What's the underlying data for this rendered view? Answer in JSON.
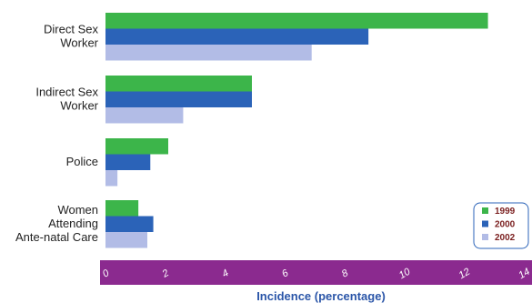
{
  "chart_data": {
    "type": "bar",
    "orientation": "horizontal",
    "categories": [
      [
        "Direct Sex",
        "Worker"
      ],
      [
        "Indirect Sex",
        "Worker"
      ],
      [
        "Police"
      ],
      [
        "Women",
        "Attending",
        "Ante-natal Care"
      ]
    ],
    "series": [
      {
        "name": "1999",
        "color": "#3cb54a",
        "values": [
          12.8,
          4.9,
          2.1,
          1.1
        ]
      },
      {
        "name": "2000",
        "color": "#2b63b8",
        "values": [
          8.8,
          4.9,
          1.5,
          1.6
        ]
      },
      {
        "name": "2002",
        "color": "#b2bce6",
        "values": [
          6.9,
          2.6,
          0.4,
          1.4
        ]
      }
    ],
    "xlabel": "Incidence (percentage)",
    "xlim": [
      0,
      14
    ],
    "xticks": [
      "0",
      "2",
      "4",
      "6",
      "8",
      "10",
      "12",
      "14"
    ],
    "axis_band_color": "#8b2a8f",
    "legend_position": "right"
  }
}
